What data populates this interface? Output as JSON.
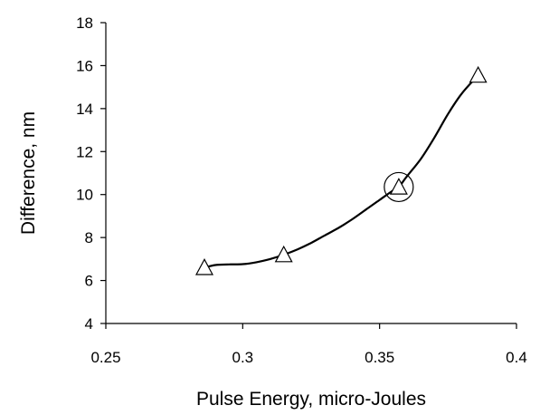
{
  "chart_data": {
    "type": "line",
    "title": "",
    "xlabel": "Pulse Energy, micro-Joules",
    "ylabel": "Difference, nm",
    "xlim": [
      0.25,
      0.4
    ],
    "ylim": [
      4,
      18
    ],
    "x_ticks": [
      0.25,
      0.3,
      0.35,
      0.4
    ],
    "x_tick_labels": [
      "0.25",
      "0.3",
      "0.35",
      "0.4"
    ],
    "y_ticks": [
      4,
      6,
      8,
      10,
      12,
      14,
      16,
      18
    ],
    "y_tick_labels": [
      "4",
      "6",
      "8",
      "10",
      "12",
      "14",
      "16",
      "18"
    ],
    "grid": false,
    "legend": "none",
    "marker": "open-triangle",
    "line_color": "#000000",
    "series": [
      {
        "x": [
          0.286,
          0.315,
          0.357,
          0.386
        ],
        "y": [
          6.6,
          7.2,
          10.35,
          15.55
        ]
      }
    ],
    "curve": {
      "x": [
        0.286,
        0.29,
        0.295,
        0.3,
        0.305,
        0.31,
        0.315,
        0.32,
        0.325,
        0.33,
        0.335,
        0.34,
        0.345,
        0.35,
        0.355,
        0.357,
        0.36,
        0.365,
        0.37,
        0.375,
        0.38,
        0.386
      ],
      "y": [
        6.6,
        6.72,
        6.75,
        6.76,
        6.85,
        7.0,
        7.2,
        7.45,
        7.75,
        8.1,
        8.45,
        8.85,
        9.3,
        9.75,
        10.2,
        10.35,
        10.85,
        11.65,
        12.65,
        13.75,
        14.7,
        15.55
      ]
    },
    "annotations": [
      {
        "type": "circle",
        "x": 0.357,
        "y": 10.35
      }
    ]
  }
}
